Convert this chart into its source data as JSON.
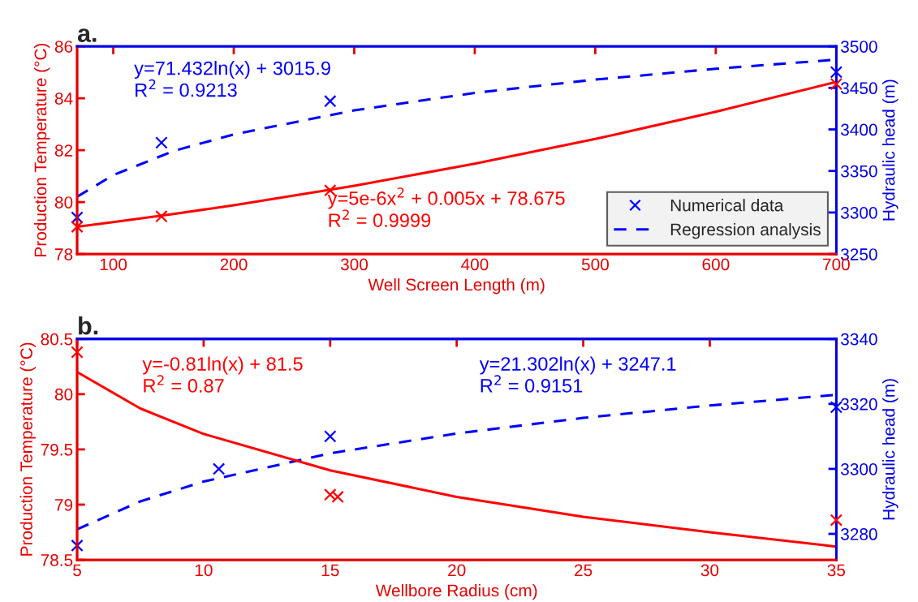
{
  "chart_data": [
    {
      "type": "line",
      "title": "a.",
      "xlabel": "Well Screen Length (m)",
      "ylabel": "Production Temperature (°C)",
      "y2label": "Hydraulic head (m)",
      "xlim": [
        70,
        700
      ],
      "xticks": [
        100,
        200,
        300,
        400,
        500,
        600,
        700
      ],
      "ylim": [
        78,
        86
      ],
      "yticks": [
        78,
        80,
        82,
        84,
        86
      ],
      "y2lim": [
        3250,
        3500
      ],
      "y2ticks": [
        3250,
        3300,
        3350,
        3400,
        3450,
        3500
      ],
      "legend": "bottom right",
      "annotations": [
        "y=71.432ln(x) + 3015.9\nR$^{2}$ = 0.9213",
        "y=5e-6x$^{2}$ + 0.005x + 78.675\nR$^{2}$ = 0.9999"
      ],
      "series": [
        {
          "type": "scatter",
          "color": "#ff0000",
          "marker": "cross",
          "x": [
            70,
            140,
            280,
            700
          ],
          "values": [
            79.05,
            79.45,
            80.45,
            84.55
          ]
        },
        {
          "color": "#ff0000",
          "line_style": "solid",
          "x": [
            70,
            100,
            150,
            200,
            300,
            400,
            500,
            600,
            700
          ],
          "values": [
            79.05,
            79.23,
            79.54,
            79.88,
            80.63,
            81.48,
            82.43,
            83.48,
            84.63
          ]
        },
        {
          "type": "scatter",
          "name": "Numerical data",
          "axis": "y2",
          "color": "#0000ff",
          "marker": "cross",
          "x": [
            70,
            140,
            280,
            700
          ],
          "values": [
            3294,
            3384,
            3434,
            3469
          ]
        },
        {
          "name": "Regression analysis",
          "axis": "y2",
          "color": "#0000ff",
          "line_style": "dashed",
          "x": [
            70,
            100,
            150,
            200,
            300,
            400,
            500,
            600,
            700
          ],
          "values": [
            3319,
            3345,
            3374,
            3394,
            3423,
            3444,
            3460,
            3473,
            3484
          ]
        }
      ]
    },
    {
      "type": "line",
      "title": "b.",
      "xlabel": "Wellbore Radius (cm)",
      "ylabel": "Production Temperature (°C)",
      "y2label": "Hydraulic head (m)",
      "xlim": [
        5,
        35
      ],
      "xticks": [
        5,
        10,
        15,
        20,
        25,
        30,
        35
      ],
      "ylim": [
        78.5,
        80.5
      ],
      "yticks": [
        78.5,
        79,
        79.5,
        80,
        80.5
      ],
      "y2lim": [
        3272,
        3340
      ],
      "y2ticks": [
        3280,
        3300,
        3320,
        3340
      ],
      "annotations": [
        "y=-0.81ln(x) + 81.5\nR$^{2}$ = 0.87",
        "y=21.302ln(x) + 3247.1\nR$^{2}$ = 0.9151"
      ],
      "series": [
        {
          "type": "scatter",
          "color": "#ff0000",
          "marker": "cross",
          "x": [
            5,
            15,
            15.3,
            35
          ],
          "values": [
            80.38,
            79.09,
            79.07,
            78.86
          ]
        },
        {
          "color": "#ff0000",
          "line_style": "solid",
          "x": [
            5,
            7.5,
            10,
            15,
            20,
            25,
            30,
            35
          ],
          "values": [
            80.2,
            79.87,
            79.64,
            79.31,
            79.07,
            78.89,
            78.75,
            78.62
          ]
        },
        {
          "type": "scatter",
          "axis": "y2",
          "color": "#0000ff",
          "marker": "cross",
          "x": [
            5,
            10.6,
            15,
            35
          ],
          "values": [
            3276.4,
            3300,
            3310,
            3319
          ]
        },
        {
          "axis": "y2",
          "color": "#0000ff",
          "line_style": "dashed",
          "x": [
            5,
            7.5,
            10,
            15,
            20,
            25,
            30,
            35
          ],
          "values": [
            3281.4,
            3290,
            3296.1,
            3304.8,
            3310.9,
            3315.7,
            3319.5,
            3322.8
          ]
        }
      ]
    }
  ]
}
